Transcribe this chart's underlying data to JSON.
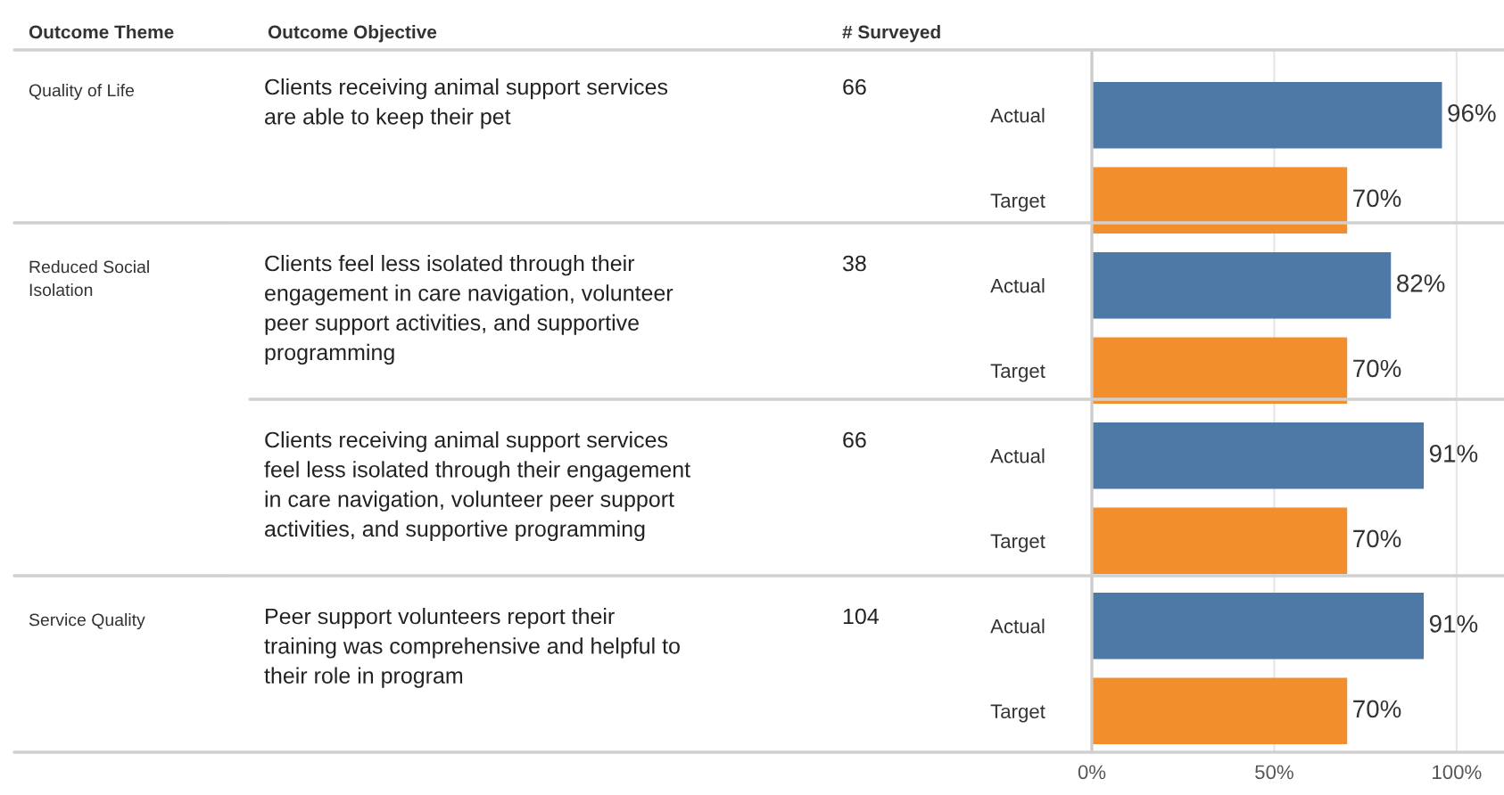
{
  "chart_data": {
    "type": "bar",
    "orientation": "horizontal",
    "categories": [
      "Actual",
      "Target",
      "Actual",
      "Target",
      "Actual",
      "Target",
      "Actual",
      "Target"
    ],
    "values": [
      96,
      70,
      82,
      70,
      91,
      70,
      91,
      70
    ],
    "colors": [
      "#4e79a7",
      "#f28e2b",
      "#4e79a7",
      "#f28e2b",
      "#4e79a7",
      "#f28e2b",
      "#4e79a7",
      "#f28e2b"
    ],
    "value_labels": [
      "96%",
      "70%",
      "82%",
      "70%",
      "91%",
      "70%",
      "91%",
      "70%"
    ],
    "xlim": [
      0,
      113
    ],
    "xticks": [
      {
        "value": 0,
        "label": "0%"
      },
      {
        "value": 50,
        "label": "50%"
      },
      {
        "value": 100,
        "label": "100%"
      }
    ],
    "grid": "x",
    "annotations": [
      "Outcome Theme",
      "Outcome Objective",
      "# Surveyed",
      "Quality of Life",
      "Reduced Social\nIsolation",
      "Service Quality",
      "Clients receiving animal support services\nare able to keep their pet",
      "Clients feel less isolated through their\nengagement in care navigation, volunteer\npeer support activities, and supportive\nprogramming",
      "Clients receiving animal support services\nfeel less isolated through their engagement\nin care navigation, volunteer peer support\nactivities, and supportive programming",
      "Peer support volunteers report their\ntraining was comprehensive and helpful to\ntheir role in program",
      "66",
      "38",
      "66",
      "104"
    ]
  }
}
